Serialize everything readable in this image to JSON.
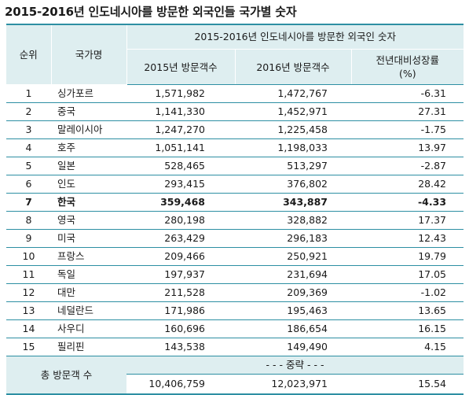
{
  "title": "2015-2016년 인도네시아를 방문한 외국인들 국가별 숫자",
  "header": {
    "rank": "순위",
    "country": "국가명",
    "group": "2015-2016년 인도네시아를 방문한 외국인 숫자",
    "y2015": "2015년 방문객수",
    "y2016": "2016년 방문객수",
    "growth_line1": "전년대비성장률",
    "growth_line2": "(%)"
  },
  "rows": [
    {
      "rank": "1",
      "country": "싱가포르",
      "y2015": "1,571,982",
      "y2016": "1,472,767",
      "growth": "-6.31"
    },
    {
      "rank": "2",
      "country": "중국",
      "y2015": "1,141,330",
      "y2016": "1,452,971",
      "growth": "27.31"
    },
    {
      "rank": "3",
      "country": "말레이시아",
      "y2015": "1,247,270",
      "y2016": "1,225,458",
      "growth": "-1.75"
    },
    {
      "rank": "4",
      "country": "호주",
      "y2015": "1,051,141",
      "y2016": "1,198,033",
      "growth": "13.97"
    },
    {
      "rank": "5",
      "country": "일본",
      "y2015": "528,465",
      "y2016": "513,297",
      "growth": "-2.87"
    },
    {
      "rank": "6",
      "country": "인도",
      "y2015": "293,415",
      "y2016": "376,802",
      "growth": "28.42"
    },
    {
      "rank": "7",
      "country": "한국",
      "y2015": "359,468",
      "y2016": "343,887",
      "growth": "-4.33"
    },
    {
      "rank": "8",
      "country": "영국",
      "y2015": "280,198",
      "y2016": "328,882",
      "growth": "17.37"
    },
    {
      "rank": "9",
      "country": "미국",
      "y2015": "263,429",
      "y2016": "296,183",
      "growth": "12.43"
    },
    {
      "rank": "10",
      "country": "프랑스",
      "y2015": "209,466",
      "y2016": "250,921",
      "growth": "19.79"
    },
    {
      "rank": "11",
      "country": "독일",
      "y2015": "197,937",
      "y2016": "231,694",
      "growth": "17.05"
    },
    {
      "rank": "12",
      "country": "대만",
      "y2015": "211,528",
      "y2016": "209,369",
      "growth": "-1.02"
    },
    {
      "rank": "13",
      "country": "네덜란드",
      "y2015": "171,986",
      "y2016": "195,463",
      "growth": "13.65"
    },
    {
      "rank": "14",
      "country": "사우디",
      "y2015": "160,696",
      "y2016": "186,654",
      "growth": "16.15"
    },
    {
      "rank": "15",
      "country": "필리핀",
      "y2015": "143,538",
      "y2016": "149,490",
      "growth": "4.15"
    }
  ],
  "total": {
    "label": "총 방문객 수",
    "middle_note": "- - - 중략 - - -",
    "y2015": "10,406,759",
    "y2016": "12,023,971",
    "growth": "15.54"
  },
  "highlight_country": "한국",
  "colors": {
    "header_bg": "#deeef0",
    "rule": "#2d8fa3"
  }
}
